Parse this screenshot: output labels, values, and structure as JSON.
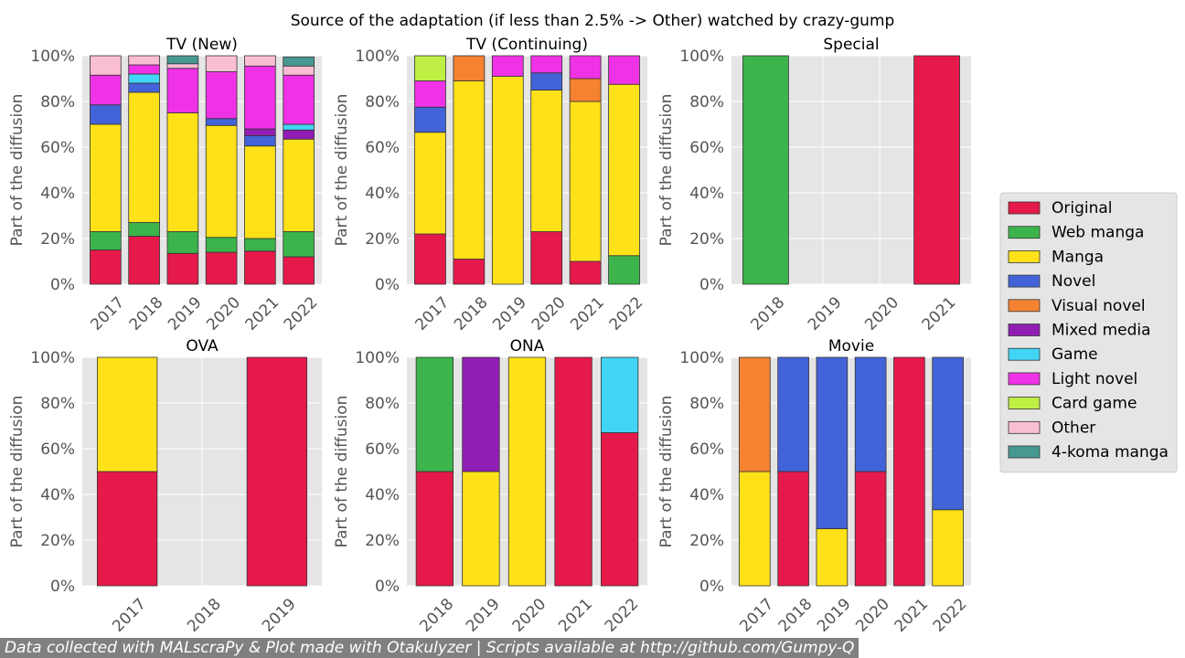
{
  "title": "Source of the adaptation (if less than 2.5% -> Other) watched by crazy-gump",
  "footer": "Data collected with MALscraPy & Plot made with Otakulyzer | Scripts available at http://github.com/Gumpy-Q",
  "legend": {
    "placement": "right",
    "entries": [
      {
        "name": "Original",
        "color": "#e6194b"
      },
      {
        "name": "Web manga",
        "color": "#3cb44b"
      },
      {
        "name": "Manga",
        "color": "#ffe119"
      },
      {
        "name": "Novel",
        "color": "#4363d8"
      },
      {
        "name": "Visual novel",
        "color": "#f58231"
      },
      {
        "name": "Mixed media",
        "color": "#911eb4"
      },
      {
        "name": "Game",
        "color": "#42d4f4"
      },
      {
        "name": "Light novel",
        "color": "#f032e6"
      },
      {
        "name": "Card game",
        "color": "#bfef45"
      },
      {
        "name": "Other",
        "color": "#fabed4"
      },
      {
        "name": "4-koma manga",
        "color": "#469990"
      }
    ]
  },
  "chart_data": [
    {
      "type": "bar",
      "stacked": true,
      "title": "TV (New)",
      "ylabel": "Part of the diffusion",
      "ylim": [
        0,
        100
      ],
      "yticks": [
        "0%",
        "20%",
        "40%",
        "60%",
        "80%",
        "100%"
      ],
      "grid": true,
      "categories": [
        "2017",
        "2018",
        "2019",
        "2020",
        "2021",
        "2022"
      ],
      "series": [
        {
          "name": "Original",
          "values": [
            15,
            21,
            13.5,
            14,
            14.5,
            12
          ]
        },
        {
          "name": "Web manga",
          "values": [
            8,
            6,
            9.5,
            6.5,
            5.5,
            11
          ]
        },
        {
          "name": "Manga",
          "values": [
            47,
            57,
            52,
            49,
            40.5,
            40.5
          ]
        },
        {
          "name": "Novel",
          "values": [
            8.5,
            4,
            0,
            3,
            4.5,
            0
          ]
        },
        {
          "name": "Visual novel",
          "values": [
            0,
            0,
            0,
            0,
            0,
            0
          ]
        },
        {
          "name": "Mixed media",
          "values": [
            0,
            0,
            0,
            0,
            3,
            4
          ]
        },
        {
          "name": "Game",
          "values": [
            0,
            4,
            0,
            0,
            0,
            2.5
          ]
        },
        {
          "name": "Light novel",
          "values": [
            13,
            4,
            19.5,
            20.5,
            27.5,
            21.5
          ]
        },
        {
          "name": "Card game",
          "values": [
            0,
            0,
            0,
            0,
            0,
            0
          ]
        },
        {
          "name": "Other",
          "values": [
            8.5,
            4,
            2,
            7,
            4.5,
            4
          ]
        },
        {
          "name": "4-koma manga",
          "values": [
            0,
            0,
            3.5,
            0,
            0,
            4
          ]
        }
      ]
    },
    {
      "type": "bar",
      "stacked": true,
      "title": "TV (Continuing)",
      "ylabel": "Part of the diffusion",
      "ylim": [
        0,
        100
      ],
      "yticks": [
        "0%",
        "20%",
        "40%",
        "60%",
        "80%",
        "100%"
      ],
      "grid": true,
      "categories": [
        "2017",
        "2018",
        "2019",
        "2020",
        "2021",
        "2022"
      ],
      "series": [
        {
          "name": "Original",
          "values": [
            22,
            11,
            0,
            23,
            10,
            0
          ]
        },
        {
          "name": "Web manga",
          "values": [
            0,
            0,
            0,
            0,
            0,
            12.5
          ]
        },
        {
          "name": "Manga",
          "values": [
            44.5,
            78,
            91,
            62,
            70,
            75
          ]
        },
        {
          "name": "Novel",
          "values": [
            11,
            0,
            0,
            7.5,
            0,
            0
          ]
        },
        {
          "name": "Visual novel",
          "values": [
            0,
            11,
            0,
            0,
            10,
            0
          ]
        },
        {
          "name": "Mixed media",
          "values": [
            0,
            0,
            0,
            0,
            0,
            0
          ]
        },
        {
          "name": "Game",
          "values": [
            0,
            0,
            0,
            0,
            0,
            0
          ]
        },
        {
          "name": "Light novel",
          "values": [
            11.5,
            0,
            9,
            7.5,
            10,
            12.5
          ]
        },
        {
          "name": "Card game",
          "values": [
            11,
            0,
            0,
            0,
            0,
            0
          ]
        },
        {
          "name": "Other",
          "values": [
            0,
            0,
            0,
            0,
            0,
            0
          ]
        },
        {
          "name": "4-koma manga",
          "values": [
            0,
            0,
            0,
            0,
            0,
            0
          ]
        }
      ]
    },
    {
      "type": "bar",
      "stacked": true,
      "title": "Special",
      "ylabel": "Part of the diffusion",
      "ylim": [
        0,
        100
      ],
      "yticks": [
        "0%",
        "20%",
        "40%",
        "60%",
        "80%",
        "100%"
      ],
      "grid": true,
      "categories": [
        "2018",
        "2019",
        "2020",
        "2021"
      ],
      "series": [
        {
          "name": "Original",
          "values": [
            0,
            0,
            0,
            100
          ]
        },
        {
          "name": "Web manga",
          "values": [
            100,
            0,
            0,
            0
          ]
        }
      ]
    },
    {
      "type": "bar",
      "stacked": true,
      "title": "OVA",
      "ylabel": "Part of the diffusion",
      "ylim": [
        0,
        100
      ],
      "yticks": [
        "0%",
        "20%",
        "40%",
        "60%",
        "80%",
        "100%"
      ],
      "grid": true,
      "categories": [
        "2017",
        "2018",
        "2019"
      ],
      "series": [
        {
          "name": "Original",
          "values": [
            50,
            0,
            100
          ]
        },
        {
          "name": "Manga",
          "values": [
            50,
            0,
            0
          ]
        }
      ]
    },
    {
      "type": "bar",
      "stacked": true,
      "title": "ONA",
      "ylabel": "Part of the diffusion",
      "ylim": [
        0,
        100
      ],
      "yticks": [
        "0%",
        "20%",
        "40%",
        "60%",
        "80%",
        "100%"
      ],
      "grid": true,
      "categories": [
        "2018",
        "2019",
        "2020",
        "2021",
        "2022"
      ],
      "series": [
        {
          "name": "Original",
          "values": [
            50,
            0,
            0,
            100,
            67
          ]
        },
        {
          "name": "Web manga",
          "values": [
            50,
            0,
            0,
            0,
            0
          ]
        },
        {
          "name": "Manga",
          "values": [
            0,
            50,
            100,
            0,
            0
          ]
        },
        {
          "name": "Mixed media",
          "values": [
            0,
            50,
            0,
            0,
            0
          ]
        },
        {
          "name": "Game",
          "values": [
            0,
            0,
            0,
            0,
            33
          ]
        }
      ]
    },
    {
      "type": "bar",
      "stacked": true,
      "title": "Movie",
      "ylabel": "Part of the diffusion",
      "ylim": [
        0,
        100
      ],
      "yticks": [
        "0%",
        "20%",
        "40%",
        "60%",
        "80%",
        "100%"
      ],
      "grid": true,
      "categories": [
        "2017",
        "2018",
        "2019",
        "2020",
        "2021",
        "2022"
      ],
      "series": [
        {
          "name": "Original",
          "values": [
            0,
            50,
            0,
            50,
            100,
            0
          ]
        },
        {
          "name": "Manga",
          "values": [
            50,
            0,
            25,
            0,
            0,
            33.3
          ]
        },
        {
          "name": "Novel",
          "values": [
            0,
            50,
            75,
            50,
            0,
            66.7
          ]
        },
        {
          "name": "Visual novel",
          "values": [
            50,
            0,
            0,
            0,
            0,
            0
          ]
        }
      ]
    }
  ]
}
